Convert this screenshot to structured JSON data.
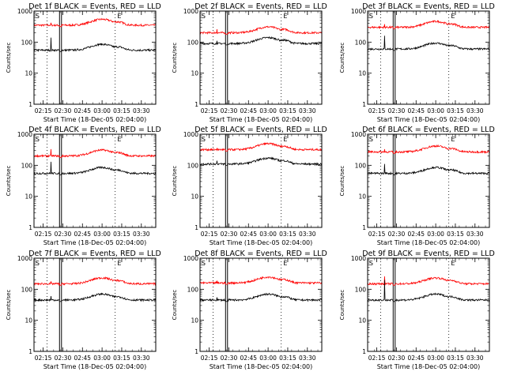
{
  "chart_data": {
    "type": "line",
    "shared": {
      "xlabel": "Start Time (18-Dec-05 02:04:00)",
      "ylabel": "Counts/sec",
      "x_ticks": [
        "02:15",
        "02:30",
        "02:45",
        "03:00",
        "03:15",
        "03:30"
      ],
      "x_tick_minutes": [
        11,
        26,
        41,
        56,
        71,
        86
      ],
      "xlim_minutes_after_start": [
        4,
        97
      ],
      "y_scale": "log",
      "ylim": [
        1,
        1000
      ],
      "y_ticks": [
        "1",
        "10",
        "100",
        "1000"
      ],
      "y_tick_values": [
        1,
        10,
        100,
        1000
      ],
      "series_colors": {
        "events": "#000000",
        "lld": "#ff0000"
      },
      "vertical_markers": {
        "solid_double_minutes": [
          23.5,
          25
        ],
        "dotted_minutes": [
          14,
          66
        ],
        "labels_at_minutes": {
          "S": 4.5,
          "E": 67
        }
      }
    },
    "panels": [
      {
        "title": "Det 1f BLACK = Events, RED = LLD",
        "events_base": 55,
        "lld_base": 350,
        "events_spike": 140,
        "lld_spike": 420
      },
      {
        "title": "Det 2f BLACK = Events, RED = LLD",
        "events_base": 90,
        "lld_base": 200,
        "events_spike": 110,
        "lld_spike": 260
      },
      {
        "title": "Det 3f BLACK = Events, RED = LLD",
        "events_base": 60,
        "lld_base": 300,
        "events_spike": 160,
        "lld_spike": 380
      },
      {
        "title": "Det 4f BLACK = Events, RED = LLD",
        "events_base": 55,
        "lld_base": 200,
        "events_spike": 130,
        "lld_spike": 330
      },
      {
        "title": "Det 5f BLACK = Events, RED = LLD",
        "events_base": 110,
        "lld_base": 320,
        "events_spike": 140,
        "lld_spike": 360
      },
      {
        "title": "Det 6f BLACK = Events, RED = LLD",
        "events_base": 55,
        "lld_base": 270,
        "events_spike": 110,
        "lld_spike": 330
      },
      {
        "title": "Det 7f BLACK = Events, RED = LLD",
        "events_base": 45,
        "lld_base": 150,
        "events_spike": 60,
        "lld_spike": 180
      },
      {
        "title": "Det 8f BLACK = Events, RED = LLD",
        "events_base": 45,
        "lld_base": 160,
        "events_spike": 55,
        "lld_spike": 190
      },
      {
        "title": "Det 9f BLACK = Events, RED = LLD",
        "events_base": 45,
        "lld_base": 150,
        "events_spike": 200,
        "lld_spike": 260
      }
    ]
  }
}
